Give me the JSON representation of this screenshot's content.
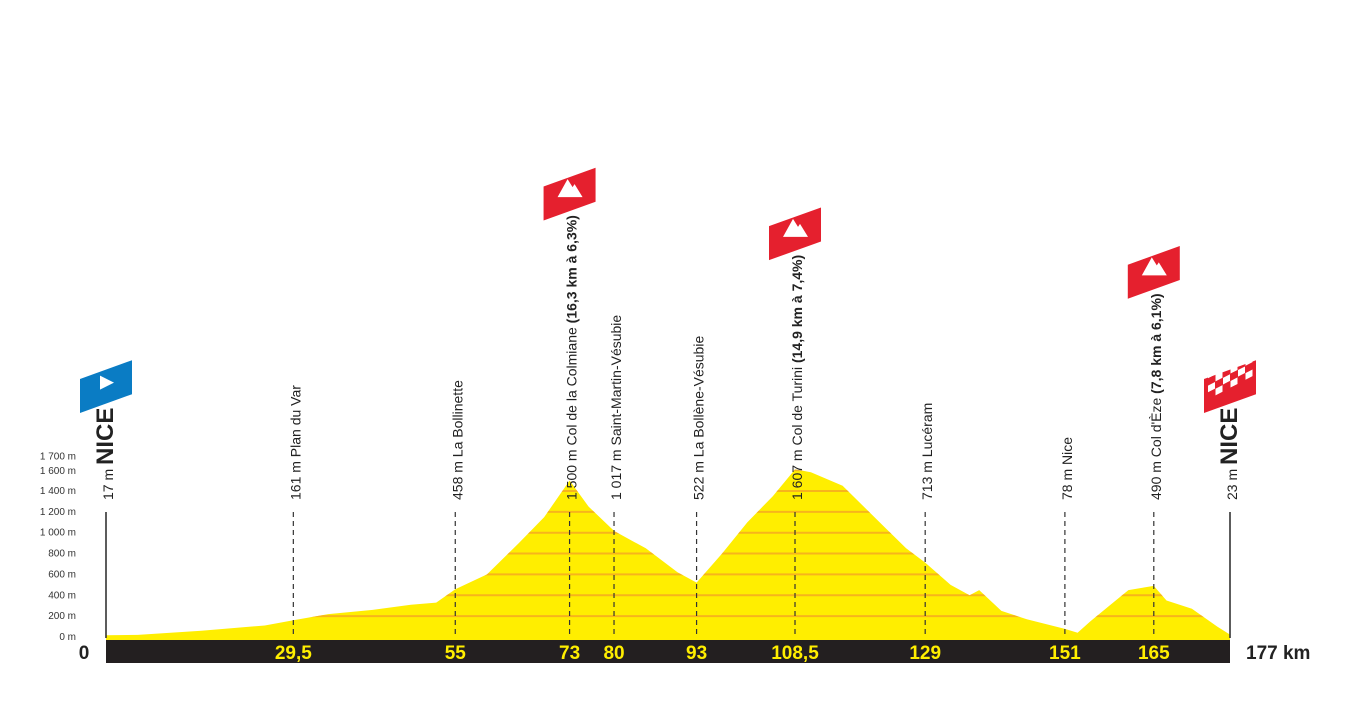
{
  "chart_data": {
    "type": "area",
    "title": "",
    "xlabel": "",
    "ylabel": "",
    "xlim": [
      0,
      177
    ],
    "ylim": [
      0,
      1700
    ],
    "x_unit": "km",
    "start_label": "0",
    "end_label": "177 km",
    "y_ticks": [
      "0 m",
      "200 m",
      "400 m",
      "600 m",
      "800 m",
      "1 000 m",
      "1 200 m",
      "1 400 m",
      "1 600 m",
      "1 700 m"
    ],
    "y_tick_values": [
      0,
      200,
      400,
      600,
      800,
      1000,
      1200,
      1400,
      1600,
      1700
    ],
    "colors": {
      "fill": "#ffee00",
      "bands": "#f5a623",
      "bar": "#231f20",
      "km_text": "#ffee00",
      "start_flag": "#0a7cc4",
      "climb_flag": "#e5202e",
      "finish_flag": "#e5202e"
    },
    "profile": {
      "km": [
        0,
        5,
        15,
        25,
        29.5,
        35,
        42,
        48,
        52,
        55,
        60,
        65,
        69,
        73,
        76,
        80,
        85,
        90,
        93,
        97,
        101,
        105,
        108.5,
        111,
        116,
        121,
        126,
        129,
        133,
        136,
        137.5,
        141,
        145,
        151,
        153,
        155,
        158,
        161,
        165,
        167,
        171,
        175,
        177
      ],
      "elev": [
        17,
        20,
        60,
        110,
        161,
        220,
        260,
        310,
        330,
        458,
        600,
        900,
        1150,
        1500,
        1250,
        1017,
        850,
        620,
        522,
        800,
        1100,
        1350,
        1607,
        1580,
        1450,
        1150,
        850,
        713,
        500,
        400,
        450,
        250,
        170,
        78,
        40,
        150,
        300,
        450,
        490,
        350,
        270,
        100,
        23
      ]
    },
    "markers": [
      {
        "km": 0,
        "km_label": "",
        "alt": "17 m",
        "name": "NICE",
        "detail": "",
        "type": "start",
        "icon": "play-icon"
      },
      {
        "km": 29.5,
        "km_label": "29,5",
        "alt": "161 m",
        "name": "Plan du Var",
        "detail": "",
        "type": "point"
      },
      {
        "km": 55,
        "km_label": "55",
        "alt": "458 m",
        "name": "La Bollinette",
        "detail": "",
        "type": "point"
      },
      {
        "km": 73,
        "km_label": "73",
        "alt": "1 500 m",
        "name": "Col de la Colmiane",
        "detail": "(16,3 km à 6,3%)",
        "type": "climb",
        "icon": "mountain-icon"
      },
      {
        "km": 80,
        "km_label": "80",
        "alt": "1 017 m",
        "name": "Saint-Martin-Vésubie",
        "detail": "",
        "type": "point"
      },
      {
        "km": 93,
        "km_label": "93",
        "alt": "522 m",
        "name": "La Bollène-Vésubie",
        "detail": "",
        "type": "point"
      },
      {
        "km": 108.5,
        "km_label": "108,5",
        "alt": "1 607 m",
        "name": "Col de Turini",
        "detail": "(14,9 km à 7,4%)",
        "type": "climb",
        "icon": "mountain-icon"
      },
      {
        "km": 129,
        "km_label": "129",
        "alt": "713 m",
        "name": "Lucéram",
        "detail": "",
        "type": "point"
      },
      {
        "km": 151,
        "km_label": "151",
        "alt": "78 m",
        "name": "Nice",
        "detail": "",
        "type": "point"
      },
      {
        "km": 165,
        "km_label": "165",
        "alt": "490 m",
        "name": "Col d'Èze",
        "detail": "(7,8 km à 6,1%)",
        "type": "climb",
        "icon": "mountain-icon"
      },
      {
        "km": 177,
        "km_label": "",
        "alt": "23 m",
        "name": "NICE",
        "detail": "",
        "type": "finish",
        "icon": "checkered-flag-icon"
      }
    ]
  }
}
